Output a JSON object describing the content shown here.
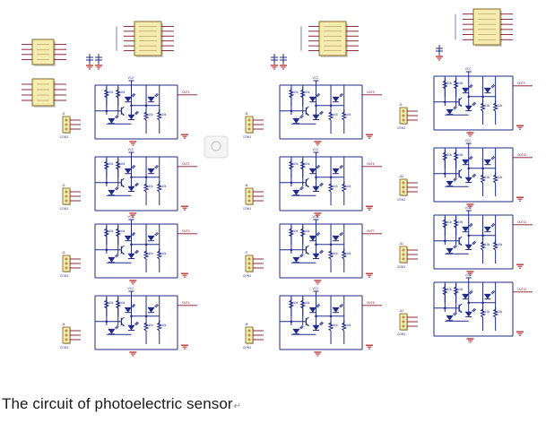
{
  "caption": "The circuit of photoelectric sensor",
  "caption_mark": "↵",
  "colors": {
    "wire": "#1f2a8a",
    "ic_fill": "#f6ecb0",
    "ic_stroke": "#7a5a10",
    "net_label": "#8a1020",
    "ground": "#b01818",
    "shadow": "#cfcfcf"
  },
  "components": {
    "supply_label": "VCC",
    "ground_label": "GND",
    "connector_label": "CON3",
    "resistor_label": "10k",
    "output_label": "OUT"
  },
  "layout": {
    "columns": 3,
    "sensor_cells": [
      4,
      4,
      4
    ],
    "ic_blocks_per_column": [
      3,
      1,
      1
    ]
  }
}
